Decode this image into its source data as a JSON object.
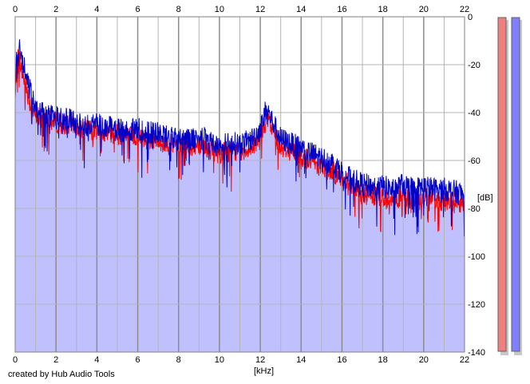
{
  "credit": "created by Hub Audio Tools",
  "chart_data": {
    "type": "area",
    "xlabel": "[kHz]",
    "ylabel": "[dB]",
    "xlim": [
      0,
      22
    ],
    "ylim": [
      -140,
      0
    ],
    "x_ticks": [
      0,
      2,
      4,
      6,
      8,
      10,
      12,
      14,
      16,
      18,
      20,
      22
    ],
    "y_ticks": [
      0,
      -20,
      -40,
      -60,
      -80,
      -100,
      -120,
      -140
    ],
    "grid": true,
    "x_ticks_top_and_bottom": true,
    "y_ticks_side": "right",
    "colors": {
      "left_channel": "#ff0000",
      "right_channel": "#0000c8",
      "fill": "#c0c0ff",
      "grid": "#b4b4b4",
      "major_grid": "#8c8c8c"
    },
    "series": [
      {
        "x": [
          0,
          0.1,
          0.2,
          0.3,
          0.5,
          0.7,
          0.9,
          1.2,
          1.5,
          2,
          2.5,
          3,
          3.5,
          4,
          4.5,
          5,
          5.5,
          6,
          6.5,
          7,
          7.5,
          8,
          8.5,
          9,
          9.5,
          10,
          10.5,
          11,
          11.5,
          12,
          12.3,
          12.6,
          13,
          13.5,
          14,
          14.5,
          15,
          15.5,
          16,
          16.5,
          17,
          17.5,
          18,
          18.5,
          19,
          19.5,
          20,
          20.5,
          21,
          21.5,
          22
        ],
        "values": [
          -35,
          -18,
          -16,
          -22,
          -28,
          -35,
          -40,
          -42,
          -43,
          -44,
          -45,
          -46,
          -47,
          -47,
          -48,
          -49,
          -50,
          -50,
          -51,
          -52,
          -53,
          -54,
          -54,
          -53,
          -55,
          -57,
          -56,
          -56,
          -55,
          -50,
          -42,
          -47,
          -54,
          -56,
          -58,
          -60,
          -62,
          -64,
          -68,
          -71,
          -74,
          -75,
          -76,
          -76,
          -75,
          -77,
          -76,
          -76,
          -77,
          -77,
          -78
        ]
      },
      {
        "x": [
          0,
          0.1,
          0.2,
          0.3,
          0.5,
          0.7,
          0.9,
          1.2,
          1.5,
          2,
          2.5,
          3,
          3.5,
          4,
          4.5,
          5,
          5.5,
          6,
          6.5,
          7,
          7.5,
          8,
          8.5,
          9,
          9.5,
          10,
          10.5,
          11,
          11.5,
          12,
          12.3,
          12.6,
          13,
          13.5,
          14,
          14.5,
          15,
          15.5,
          16,
          16.5,
          17,
          17.5,
          18,
          18.5,
          19,
          19.5,
          20,
          20.5,
          21,
          21.5,
          22
        ],
        "values": [
          -28,
          -13,
          -12,
          -18,
          -22,
          -30,
          -36,
          -39,
          -41,
          -42,
          -43,
          -44,
          -45,
          -45,
          -46,
          -47,
          -48,
          -47,
          -48,
          -49,
          -50,
          -51,
          -51,
          -50,
          -52,
          -54,
          -53,
          -53,
          -52,
          -47,
          -38,
          -44,
          -51,
          -53,
          -55,
          -57,
          -59,
          -61,
          -65,
          -68,
          -70,
          -71,
          -71,
          -72,
          -70,
          -72,
          -71,
          -72,
          -72,
          -73,
          -74
        ]
      }
    ],
    "level_meters": {
      "left": -140,
      "right": -140
    }
  }
}
